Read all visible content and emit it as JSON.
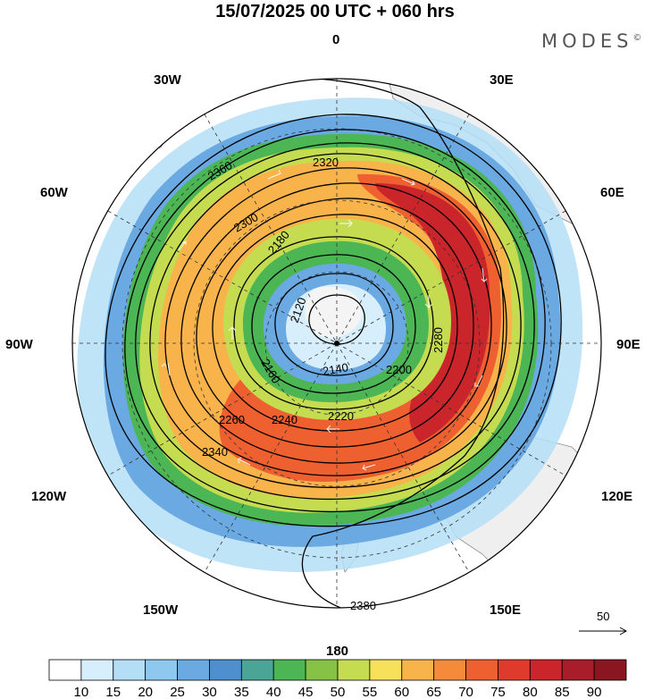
{
  "title": "15/07/2025  00 UTC  + 060 hrs",
  "brand": "MODES",
  "brand_mark": "©",
  "longitude_labels": {
    "north": "0",
    "ne30": "30E",
    "ne60": "60E",
    "east": "90E",
    "se120": "120E",
    "se150": "150E",
    "south": "180",
    "sw150": "150W",
    "sw120": "120W",
    "west": "90W",
    "nw60": "60W",
    "nw30": "30W"
  },
  "wind_scale_label": "50",
  "contour_labels": [
    "2120",
    "2140",
    "2160",
    "2180",
    "2200",
    "2220",
    "2240",
    "2260",
    "2280",
    "2300",
    "2320",
    "2340",
    "2360",
    "2380"
  ],
  "colorbar": {
    "ticks": [
      "10",
      "15",
      "20",
      "25",
      "30",
      "35",
      "40",
      "45",
      "50",
      "55",
      "60",
      "65",
      "70",
      "75",
      "80",
      "85",
      "90"
    ],
    "colors": [
      "#ffffff",
      "#d7effc",
      "#b4def6",
      "#8fc8ef",
      "#6aa9e1",
      "#4e8fcf",
      "#4ba597",
      "#4cb554",
      "#86c246",
      "#c5dc50",
      "#f7e15a",
      "#f8b34b",
      "#f58b3a",
      "#ee6030",
      "#de3b2c",
      "#c9252b",
      "#a91c2a",
      "#8a1622"
    ]
  },
  "colors": {
    "land": "#efefef",
    "coast": "#8a8a8a",
    "grid": "#333333",
    "contour": "#000000"
  }
}
